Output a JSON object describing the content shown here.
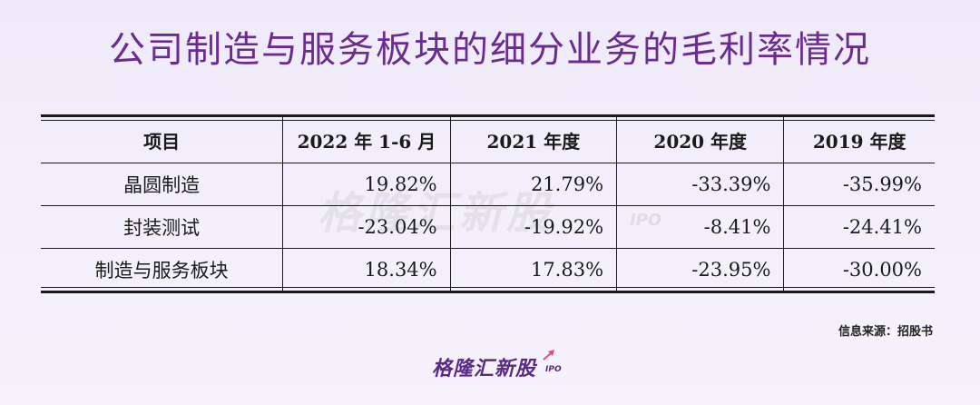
{
  "title": "公司制造与服务板块的细分业务的毛利率情况",
  "table": {
    "headers": [
      "项目",
      "2022 年 1-6 月",
      "2021 年度",
      "2020 年度",
      "2019 年度"
    ],
    "rows": [
      {
        "label": "晶圆制造",
        "values": [
          "19.82%",
          "21.79%",
          "-33.39%",
          "-35.99%"
        ]
      },
      {
        "label": "封装测试",
        "values": [
          "-23.04%",
          "-19.92%",
          "-8.41%",
          "-24.41%"
        ]
      },
      {
        "label": "制造与服务板块",
        "values": [
          "18.34%",
          "17.83%",
          "-23.95%",
          "-30.00%"
        ]
      }
    ]
  },
  "source": "信息来源：招股书",
  "watermark": {
    "text": "格隆汇新股",
    "ipo": "IPO"
  },
  "logo": {
    "text": "格隆汇新股",
    "ipo": "IPO"
  },
  "colors": {
    "title": "#6b2c91",
    "logo": "#5a2a86"
  }
}
